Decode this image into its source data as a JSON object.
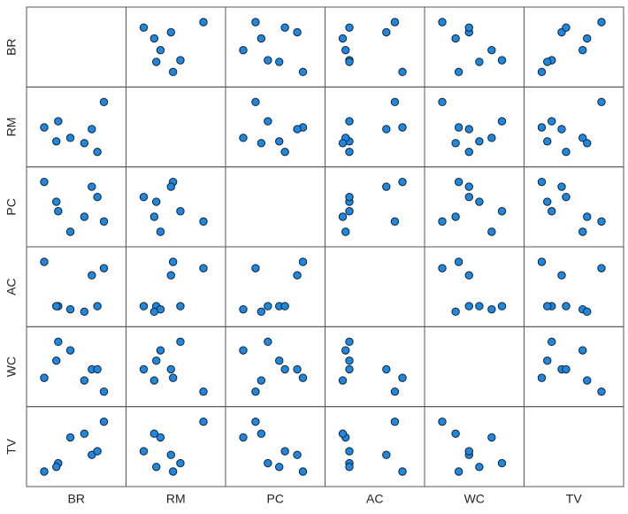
{
  "chart_data": {
    "type": "scatter-matrix",
    "color": "#1e88e0",
    "variables": [
      {
        "name": "BR",
        "values": [
          0,
          15,
          13,
          28,
          43,
          51,
          57,
          64
        ]
      },
      {
        "name": "RM",
        "values": [
          28,
          35,
          12,
          16,
          10,
          26,
          0,
          57
        ]
      },
      {
        "name": "PC",
        "values": [
          63,
          26,
          38,
          0,
          19,
          57,
          44,
          13
        ]
      },
      {
        "name": "AC",
        "values": [
          63,
          7,
          7,
          3,
          0,
          46,
          7,
          55
        ]
      },
      {
        "name": "WC",
        "values": [
          16,
          58,
          36,
          48,
          13,
          26,
          26,
          0
        ]
      },
      {
        "name": "TV",
        "values": [
          0,
          9,
          5,
          37,
          41,
          18,
          22,
          54
        ]
      }
    ]
  }
}
